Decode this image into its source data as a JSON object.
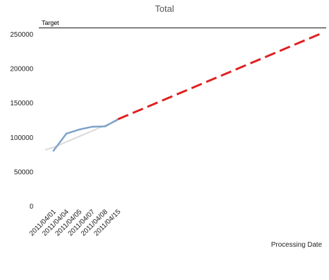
{
  "chart_data": {
    "type": "line",
    "title": "Total",
    "xlabel": "Processing Date",
    "ylabel": "",
    "ylim": [
      0,
      250000
    ],
    "yticks": [
      "0",
      "50000",
      "100000",
      "150000",
      "200000",
      "250000"
    ],
    "categories": [
      "2011/04/01",
      "2011/04/04",
      "2011/04/05",
      "2011/04/07",
      "2011/04/08",
      "2011/04/15"
    ],
    "series": [
      {
        "values": [
          80000,
          105000,
          111000,
          115000,
          115500,
          126000
        ],
        "color": "#7ea3c8"
      }
    ],
    "trendline": {
      "values": [
        85000,
        93000,
        101000,
        109000,
        117000,
        124000
      ],
      "color": "#d9d9d9"
    },
    "projection": {
      "from_value": 126000,
      "to_value": 250000,
      "color": "#e02020",
      "style": "dashed"
    },
    "reference_line": {
      "label": "Target",
      "value": 259000,
      "color": "#000000"
    },
    "grid": false
  }
}
